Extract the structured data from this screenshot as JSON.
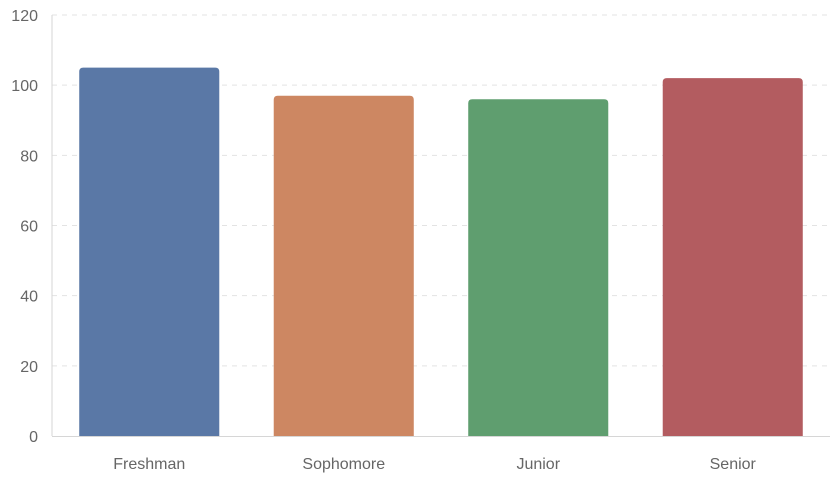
{
  "chart_data": {
    "type": "bar",
    "title": "",
    "xlabel": "",
    "ylabel": "",
    "categories": [
      "Freshman",
      "Sophomore",
      "Junior",
      "Senior"
    ],
    "values": [
      105,
      97,
      96,
      102
    ],
    "colors": [
      "#5a78a6",
      "#cd8762",
      "#5f9e6f",
      "#b35c60"
    ],
    "ylim": [
      0,
      120
    ],
    "yticks": [
      "0",
      "20",
      "40",
      "60",
      "80",
      "100",
      "120"
    ],
    "grid": true,
    "legend": "none"
  }
}
